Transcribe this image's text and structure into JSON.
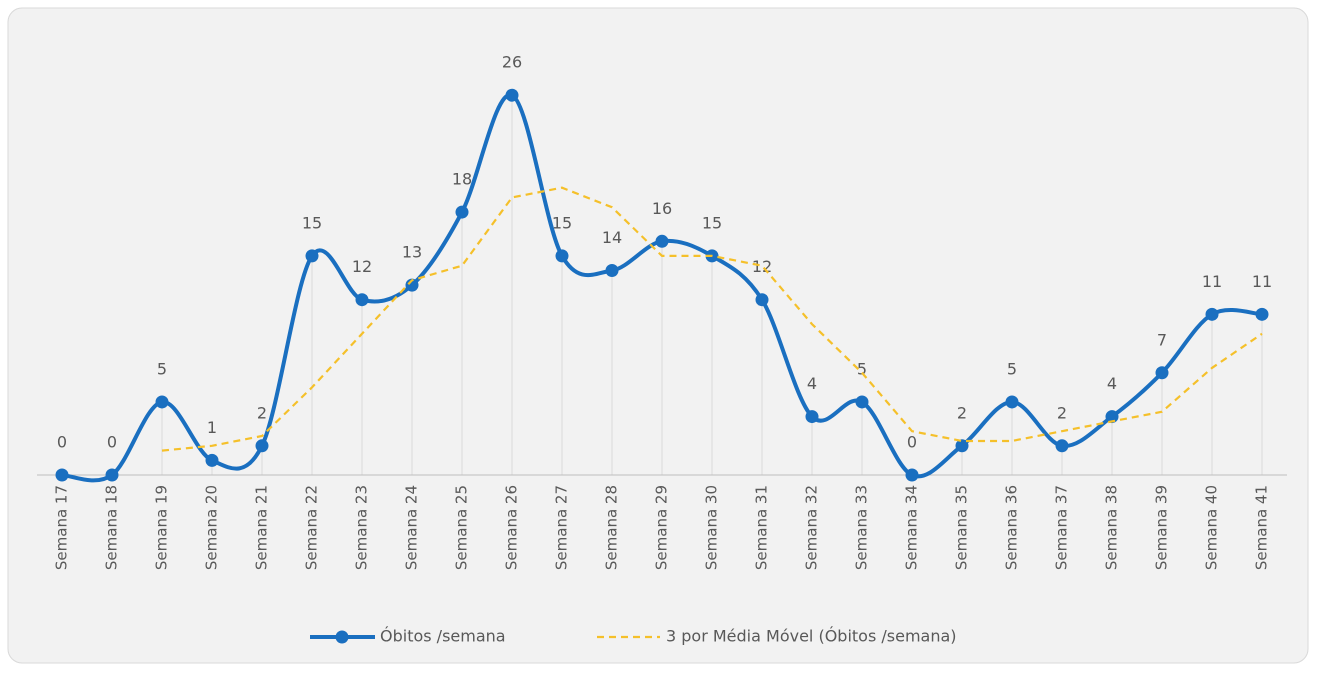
{
  "chart_data": {
    "type": "line",
    "categories": [
      "Semana 17",
      "Semana 18",
      "Semana 19",
      "Semana 20",
      "Semana 21",
      "Semana 22",
      "Semana 23",
      "Semana 24",
      "Semana 25",
      "Semana 26",
      "Semana 27",
      "Semana 28",
      "Semana 29",
      "Semana 30",
      "Semana 31",
      "Semana 32",
      "Semana 33",
      "Semana 34",
      "Semana 35",
      "Semana 36",
      "Semana 37",
      "Semana 38",
      "Semana 39",
      "Semana 40",
      "Semana 41"
    ],
    "series": [
      {
        "name": "Óbitos /semana",
        "color": "#1a6fc0",
        "smooth": true,
        "markers": true,
        "data_labels": true,
        "values": [
          0,
          0,
          5,
          1,
          2,
          15,
          12,
          13,
          18,
          26,
          15,
          14,
          16,
          15,
          12,
          4,
          5,
          0,
          2,
          5,
          2,
          4,
          7,
          11,
          11
        ]
      },
      {
        "name": "3 por Média Móvel (Óbitos /semana)",
        "color": "#f5c02a",
        "dashed": true,
        "values": [
          null,
          null,
          1.67,
          2,
          2.67,
          6,
          9.67,
          13.33,
          14.33,
          19,
          19.67,
          18.33,
          15,
          15,
          14.33,
          10.33,
          7,
          3,
          2.33,
          2.33,
          3,
          3.67,
          4.33,
          7.33,
          9.67
        ]
      }
    ],
    "ylim": [
      0,
      28
    ],
    "legend": "bottom"
  }
}
